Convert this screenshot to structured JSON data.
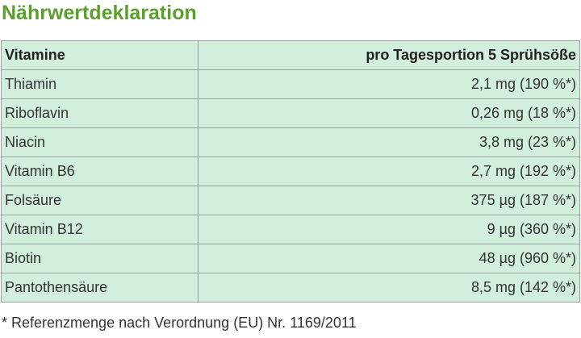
{
  "header": {
    "title": "Nährwertdeklaration"
  },
  "table": {
    "columns": [
      "Vitamine",
      "pro Tagesportion 5 Sprühsöße"
    ],
    "rows": [
      [
        "Thiamin",
        "2,1 mg (190 %*)"
      ],
      [
        "Riboflavin",
        "0,26 mg (18 %*)"
      ],
      [
        "Niacin",
        "3,8 mg (23 %*)"
      ],
      [
        "Vitamin B6",
        "2,7 mg (192 %*)"
      ],
      [
        "Folsäure",
        "375 µg (187 %*)"
      ],
      [
        "Vitamin B12",
        "9 µg (360 %*)"
      ],
      [
        "Biotin",
        "48 µg (960 %*)"
      ],
      [
        "Pantothensäure",
        "8,5 mg (142 %*)"
      ]
    ]
  },
  "footnote": "* Referenzmenge nach Verordnung (EU) Nr. 1169/2011"
}
